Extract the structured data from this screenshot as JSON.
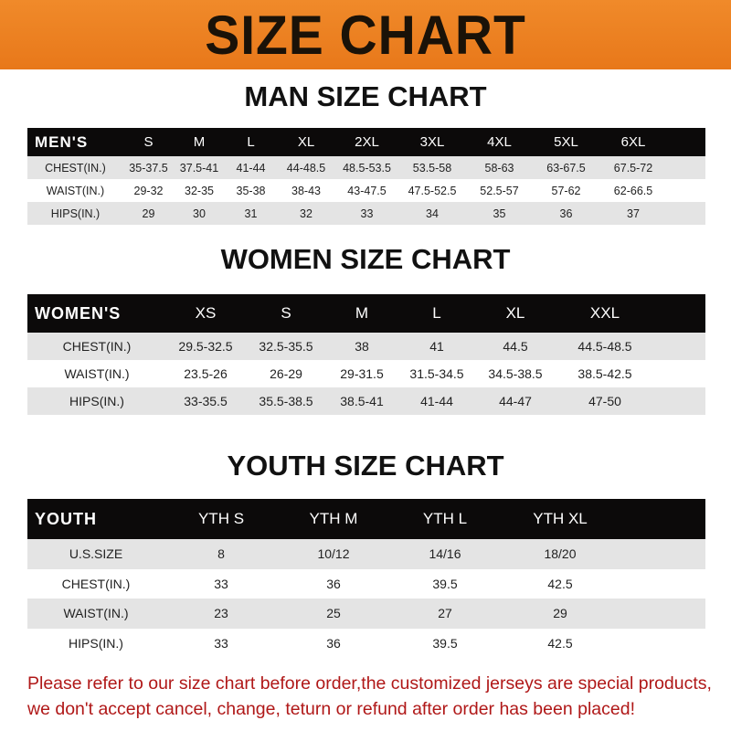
{
  "title": "SIZE CHART",
  "accent_color": "#ee8224",
  "men": {
    "heading": "MAN SIZE CHART",
    "header": [
      "MEN'S",
      "S",
      "M",
      "L",
      "XL",
      "2XL",
      "3XL",
      "4XL",
      "5XL",
      "6XL"
    ],
    "rows": [
      [
        "CHEST(IN.)",
        "35-37.5",
        "37.5-41",
        "41-44",
        "44-48.5",
        "48.5-53.5",
        "53.5-58",
        "58-63",
        "63-67.5",
        "67.5-72"
      ],
      [
        "WAIST(IN.)",
        "29-32",
        "32-35",
        "35-38",
        "38-43",
        "43-47.5",
        "47.5-52.5",
        "52.5-57",
        "57-62",
        "62-66.5"
      ],
      [
        "HIPS(IN.)",
        "29",
        "30",
        "31",
        "32",
        "33",
        "34",
        "35",
        "36",
        "37"
      ]
    ]
  },
  "women": {
    "heading": "WOMEN SIZE CHART",
    "header": [
      "WOMEN'S",
      "XS",
      "S",
      "M",
      "L",
      "XL",
      "XXL"
    ],
    "rows": [
      [
        "CHEST(IN.)",
        "29.5-32.5",
        "32.5-35.5",
        "38",
        "41",
        "44.5",
        "44.5-48.5"
      ],
      [
        "WAIST(IN.)",
        "23.5-26",
        "26-29",
        "29-31.5",
        "31.5-34.5",
        "34.5-38.5",
        "38.5-42.5"
      ],
      [
        "HIPS(IN.)",
        "33-35.5",
        "35.5-38.5",
        "38.5-41",
        "41-44",
        "44-47",
        "47-50"
      ]
    ]
  },
  "youth": {
    "heading": "YOUTH SIZE CHART",
    "header": [
      "YOUTH",
      "YTH S",
      "YTH M",
      "YTH L",
      "YTH XL"
    ],
    "rows": [
      [
        "U.S.SIZE",
        "8",
        "10/12",
        "14/16",
        "18/20"
      ],
      [
        "CHEST(IN.)",
        "33",
        "36",
        "39.5",
        "42.5"
      ],
      [
        "WAIST(IN.)",
        "23",
        "25",
        "27",
        "29"
      ],
      [
        "HIPS(IN.)",
        "33",
        "36",
        "39.5",
        "42.5"
      ]
    ]
  },
  "note": [
    "Please refer to our size chart before order,the customized jerseys are special products,",
    "we don't accept cancel, change, teturn or refund after order has been placed!"
  ]
}
